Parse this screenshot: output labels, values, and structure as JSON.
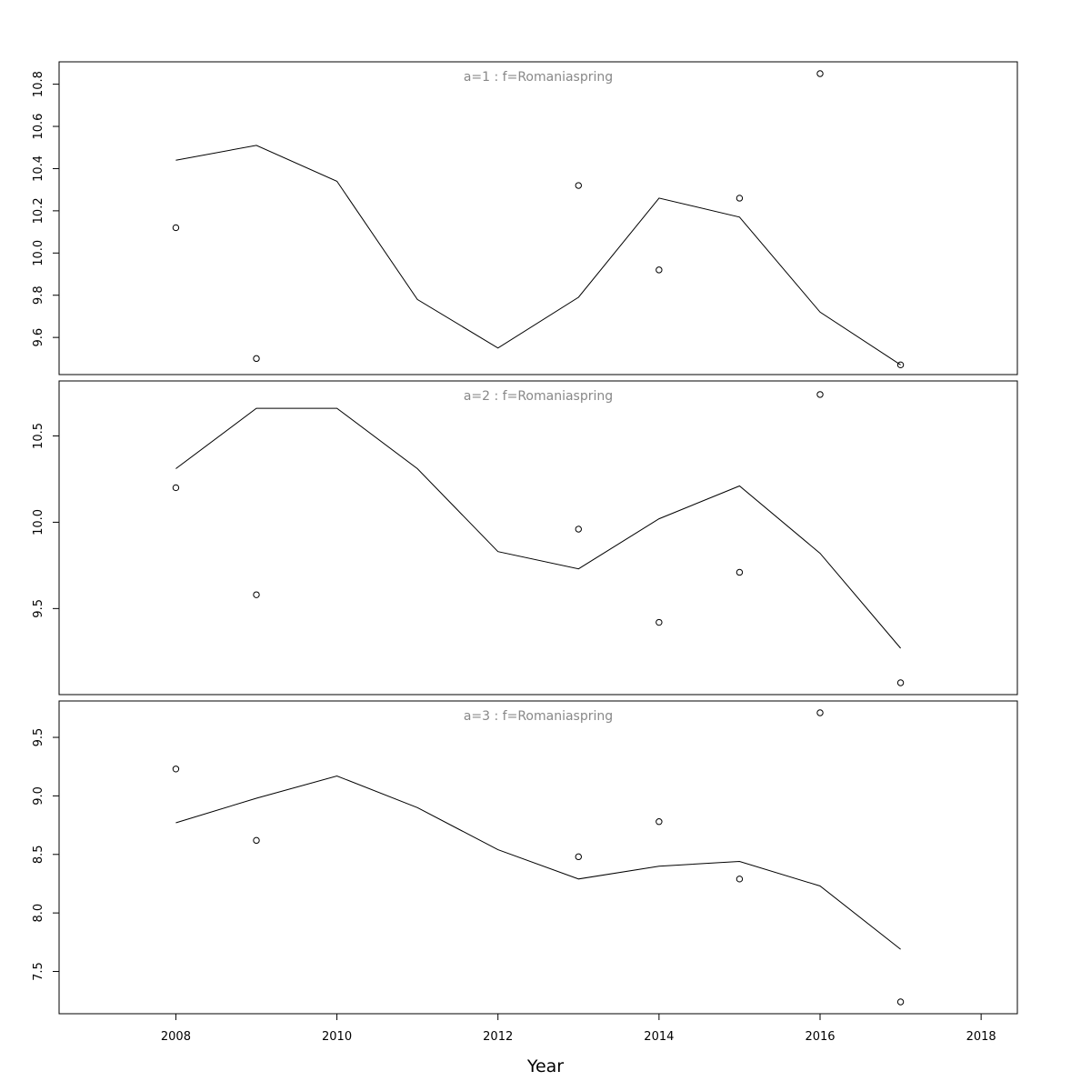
{
  "chart_data": {
    "type": "line",
    "xlabel": "Year",
    "xlim": [
      2006.55,
      2018.45
    ],
    "x_ticks": [
      2008,
      2010,
      2012,
      2014,
      2016,
      2018
    ],
    "x_tick_labels": [
      "2008",
      "2010",
      "2012",
      "2014",
      "2016",
      "2018"
    ],
    "panels": [
      {
        "title": "a=1  :  f=Romaniaspring",
        "ylim": [
          9.48,
          10.85
        ],
        "y_ticks": [
          9.6,
          9.8,
          10.0,
          10.2,
          10.4,
          10.6,
          10.8
        ],
        "y_tick_labels": [
          "9.6",
          "9.8",
          "10.0",
          "10.2",
          "10.4",
          "10.6",
          "10.8"
        ],
        "line": {
          "x": [
            2008,
            2009,
            2010,
            2011,
            2012,
            2013,
            2014,
            2015,
            2016,
            2017
          ],
          "y": [
            10.44,
            10.51,
            10.34,
            9.78,
            9.55,
            9.79,
            10.26,
            10.17,
            9.72,
            9.47
          ]
        },
        "points": {
          "x": [
            2008,
            2009,
            2013,
            2014,
            2015,
            2016,
            2017
          ],
          "y": [
            10.12,
            9.5,
            10.32,
            9.92,
            10.26,
            10.85,
            9.47
          ]
        }
      },
      {
        "title": "a=2  :  f=Romaniaspring",
        "ylim": [
          9.07,
          10.75
        ],
        "y_ticks": [
          9.5,
          10.0,
          10.5
        ],
        "y_tick_labels": [
          "9.5",
          "10.0",
          "10.5"
        ],
        "line": {
          "x": [
            2008,
            2009,
            2010,
            2011,
            2012,
            2013,
            2014,
            2015,
            2016,
            2017
          ],
          "y": [
            10.31,
            10.66,
            10.66,
            10.31,
            9.83,
            9.73,
            10.02,
            10.21,
            9.82,
            9.27
          ]
        },
        "points": {
          "x": [
            2008,
            2009,
            2013,
            2014,
            2015,
            2016,
            2017
          ],
          "y": [
            10.2,
            9.58,
            9.96,
            9.42,
            9.71,
            10.74,
            9.07
          ]
        }
      },
      {
        "title": "a=3  :  f=Romaniaspring",
        "ylim": [
          7.24,
          9.71
        ],
        "y_ticks": [
          7.5,
          8.0,
          8.5,
          9.0,
          9.5
        ],
        "y_tick_labels": [
          "7.5",
          "8.0",
          "8.5",
          "9.0",
          "9.5"
        ],
        "line": {
          "x": [
            2008,
            2009,
            2010,
            2011,
            2012,
            2013,
            2014,
            2015,
            2016,
            2017
          ],
          "y": [
            8.77,
            8.98,
            9.17,
            8.9,
            8.54,
            8.29,
            8.4,
            8.44,
            8.23,
            7.69
          ]
        },
        "points": {
          "x": [
            2008,
            2009,
            2013,
            2014,
            2015,
            2016,
            2017
          ],
          "y": [
            9.23,
            8.62,
            8.48,
            8.78,
            8.29,
            9.71,
            7.24
          ]
        }
      }
    ]
  }
}
